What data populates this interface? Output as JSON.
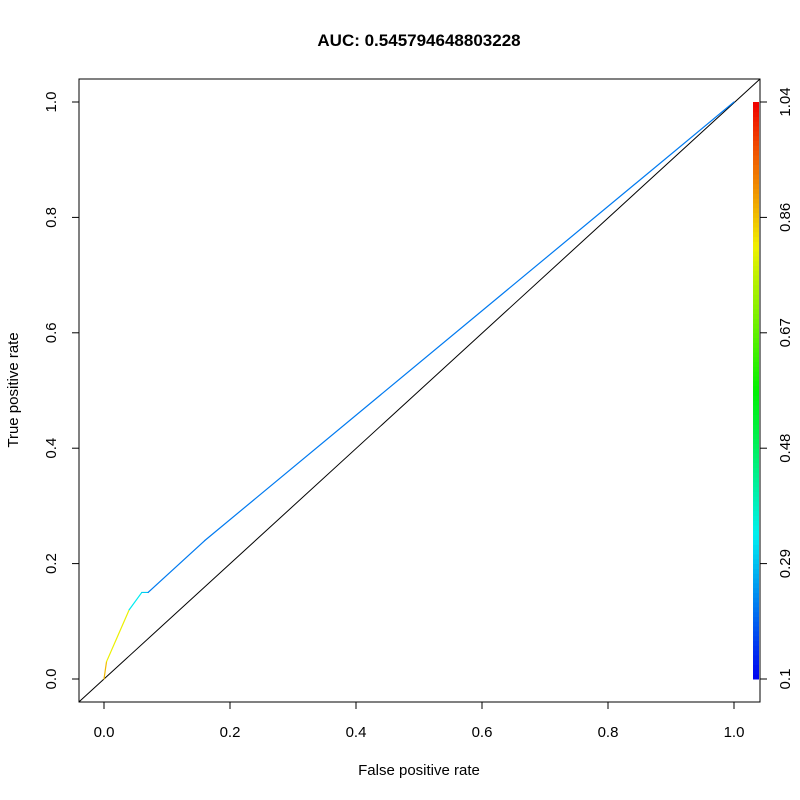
{
  "chart_data": {
    "type": "line",
    "title": "AUC: 0.545794648803228",
    "xlabel": "False positive rate",
    "ylabel": "True positive rate",
    "xlim": [
      0,
      1
    ],
    "ylim": [
      0,
      1
    ],
    "x_ticks": [
      "0.0",
      "0.2",
      "0.4",
      "0.6",
      "0.8",
      "1.0"
    ],
    "y_ticks": [
      "0.0",
      "0.2",
      "0.4",
      "0.6",
      "0.8",
      "1.0"
    ],
    "grid": false,
    "diagonal_reference": true,
    "colorbar": {
      "range": [
        0.1,
        1.04
      ],
      "tick_labels": [
        "0.1",
        "0.29",
        "0.48",
        "0.67",
        "0.86",
        "1.04"
      ],
      "colormap": "rainbow (blue to red)"
    },
    "roc_curve": [
      {
        "fpr": 0.0,
        "tpr": 0.0,
        "cutoff": 1.04
      },
      {
        "fpr": 0.004,
        "tpr": 0.03,
        "cutoff": 0.86
      },
      {
        "fpr": 0.04,
        "tpr": 0.12,
        "cutoff": 0.8
      },
      {
        "fpr": 0.06,
        "tpr": 0.15,
        "cutoff": 0.33
      },
      {
        "fpr": 0.07,
        "tpr": 0.15,
        "cutoff": 0.3
      },
      {
        "fpr": 0.16,
        "tpr": 0.24,
        "cutoff": 0.22
      },
      {
        "fpr": 1.0,
        "tpr": 1.0,
        "cutoff": 0.22
      }
    ]
  }
}
